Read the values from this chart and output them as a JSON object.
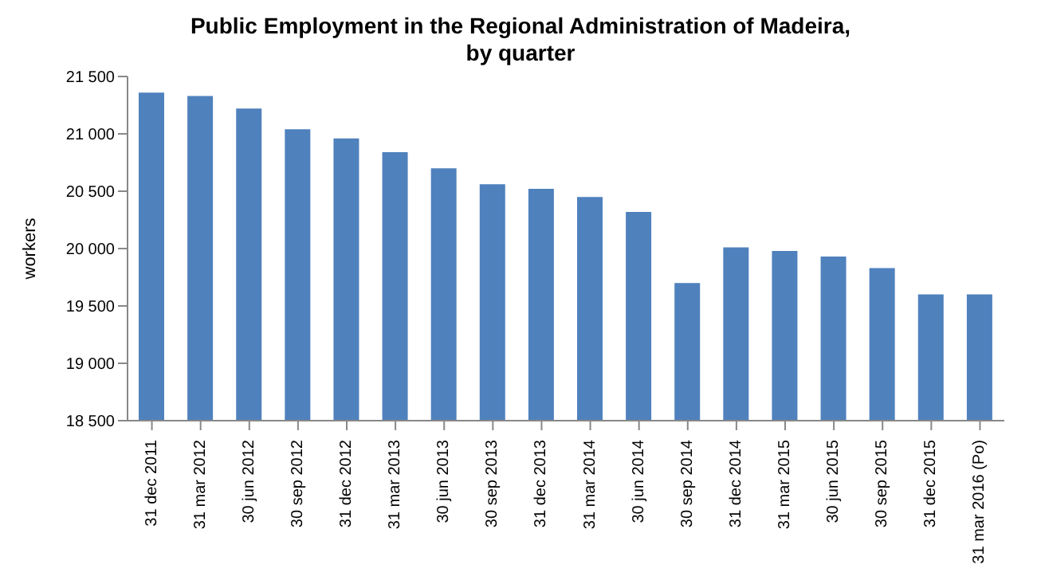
{
  "chart_data": {
    "type": "bar",
    "title": "Public Employment in the Regional Administration of Madeira, by quarter",
    "ylabel": "workers",
    "categories": [
      "31 dec 2011",
      "31 mar 2012",
      "30 jun 2012",
      "30 sep 2012",
      "31 dec 2012",
      "31 mar 2013",
      "30 jun 2013",
      "30 sep 2013",
      "31 dec 2013",
      "31 mar 2014",
      "30 jun 2014",
      "30 sep 2014",
      "31 dec 2014",
      "31 mar 2015",
      "30 jun 2015",
      "30 sep 2015",
      "31 dec 2015",
      "31 mar 2016  (Po)"
    ],
    "values": [
      21360,
      21330,
      21220,
      21040,
      20960,
      20840,
      20700,
      20560,
      20520,
      20450,
      20320,
      19700,
      20010,
      19980,
      19930,
      19830,
      19600,
      19600
    ],
    "color": "#4f81bd",
    "ylim": [
      18500,
      21500
    ],
    "yticks": [
      {
        "value": 18500,
        "label": "18 500"
      },
      {
        "value": 19000,
        "label": "19 000"
      },
      {
        "value": 19500,
        "label": "19 500"
      },
      {
        "value": 20000,
        "label": "20 000"
      },
      {
        "value": 20500,
        "label": "20 500"
      },
      {
        "value": 21000,
        "label": "21 000"
      },
      {
        "value": 21500,
        "label": "21 500"
      }
    ],
    "grid": false,
    "legend": false
  }
}
